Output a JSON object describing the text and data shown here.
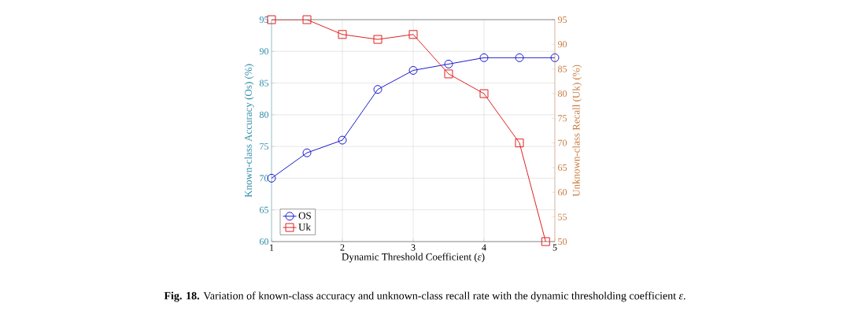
{
  "chart_data": {
    "type": "line",
    "xlabel": "Dynamic Threshold Coefficient (*ε*)",
    "ylabel": "Known-class Accuracy (Os) (%)",
    "y2label": "Unknown-class Recall (Uk) (%)",
    "x": [
      1,
      1.5,
      2,
      2.5,
      3,
      3.5,
      4,
      4.5,
      5
    ],
    "xlim": [
      1,
      5
    ],
    "xticks": [
      1,
      2,
      3,
      4,
      5
    ],
    "ylim": [
      60,
      95
    ],
    "yticks": [
      60,
      65,
      70,
      75,
      80,
      85,
      90,
      95
    ],
    "y2lim": [
      50,
      95
    ],
    "y2ticks": [
      50,
      55,
      60,
      65,
      70,
      75,
      80,
      85,
      90,
      95
    ],
    "series": [
      {
        "name": "OS",
        "color": "#1a1ad0",
        "marker": "circle",
        "values": [
          70,
          74,
          76,
          84,
          87,
          88,
          89,
          89,
          89
        ]
      },
      {
        "name": "Uk",
        "color": "#e02020",
        "marker": "square",
        "axis": "y2",
        "x": [
          1,
          1.5,
          2,
          2.5,
          3,
          3.5,
          4,
          4.5,
          4.87
        ],
        "values": [
          95,
          95,
          92,
          91,
          92,
          84,
          80,
          70,
          50
        ]
      }
    ],
    "grid": true,
    "legend": "bottom left",
    "line_style": "solid",
    "annotations": [
      "**Fig. 18.** Variation of known-class accuracy and unknown-class recall rate with the dynamic thresholding coefficient *ε*."
    ]
  }
}
